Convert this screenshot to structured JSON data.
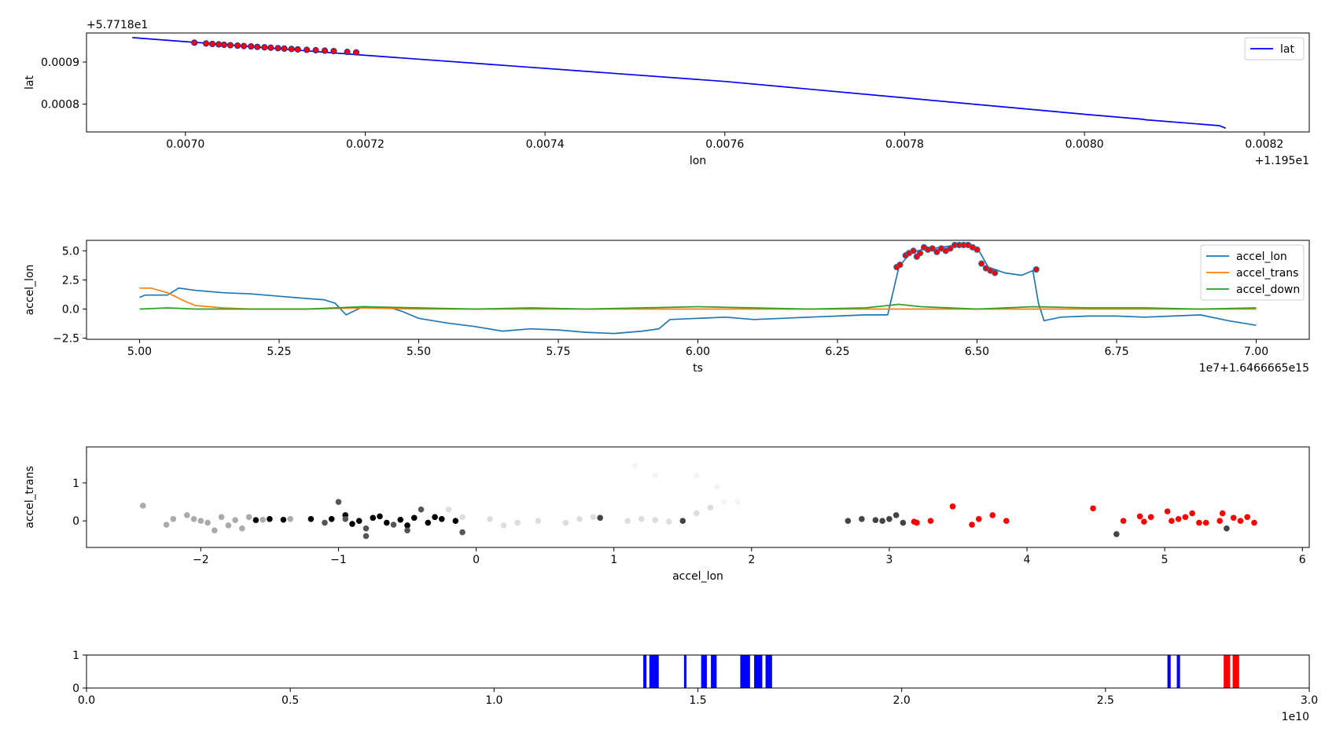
{
  "chart_data": [
    {
      "type": "line",
      "xlabel": "lon",
      "ylabel": "lat",
      "offset_x": "+1.195e1",
      "offset_y": "+5.7718e1",
      "xlim": [
        0.00689,
        0.00825
      ],
      "ylim": [
        0.000734,
        0.000969
      ],
      "xticks": [
        0.007,
        0.0072,
        0.0074,
        0.0076,
        0.0078,
        0.008,
        0.0082
      ],
      "xtick_labels": [
        "0.0070",
        "0.0072",
        "0.0074",
        "0.0076",
        "0.0078",
        "0.0080",
        "0.0082"
      ],
      "yticks": [
        0.0008,
        0.0009
      ],
      "ytick_labels": [
        "0.0008",
        "0.0009"
      ],
      "legend_position": "top-right",
      "series": [
        {
          "name": "lat",
          "color": "#0000ff",
          "x": [
            0.006941,
            0.0072,
            0.0076,
            0.008,
            0.008065,
            0.008068,
            0.00815,
            0.008157
          ],
          "y": [
            0.000958,
            0.000916,
            0.000854,
            0.000776,
            0.000764,
            0.000763,
            0.000749,
            0.000743
          ]
        },
        {
          "name": "",
          "kind": "scatter",
          "color": "#ff0000",
          "edge": "#2030a0",
          "x": [
            0.00701,
            0.007023,
            0.00703,
            0.007037,
            0.007043,
            0.00705,
            0.007058,
            0.007065,
            0.007073,
            0.00708,
            0.007088,
            0.007095,
            0.007103,
            0.00711,
            0.007118,
            0.007125,
            0.007135,
            0.007145,
            0.007155,
            0.007165,
            0.00718,
            0.00719
          ],
          "y": [
            0.000946,
            0.000944,
            0.000943,
            0.000942,
            0.000941,
            0.00094,
            0.000939,
            0.000938,
            0.000937,
            0.000936,
            0.000935,
            0.000934,
            0.000933,
            0.000932,
            0.000931,
            0.00093,
            0.000929,
            0.000928,
            0.000927,
            0.000926,
            0.000924,
            0.000923
          ]
        }
      ]
    },
    {
      "type": "line",
      "xlabel": "ts",
      "ylabel": "accel_lon",
      "offset_x": "1e7+1.6466665e15",
      "xlim": [
        4.905,
        7.095
      ],
      "ylim": [
        -2.6,
        5.9
      ],
      "xticks": [
        5.0,
        5.25,
        5.5,
        5.75,
        6.0,
        6.25,
        6.5,
        6.75,
        7.0
      ],
      "xtick_labels": [
        "5.00",
        "5.25",
        "5.50",
        "5.75",
        "6.00",
        "6.25",
        "6.50",
        "6.75",
        "7.00"
      ],
      "yticks": [
        -2.5,
        0.0,
        2.5,
        5.0
      ],
      "ytick_labels": [
        "−2.5",
        "0.0",
        "2.5",
        "5.0"
      ],
      "legend_position": "top-right",
      "series": [
        {
          "name": "accel_lon",
          "color": "#1f77b4",
          "x": [
            5.0,
            5.01,
            5.05,
            5.07,
            5.1,
            5.15,
            5.2,
            5.25,
            5.3,
            5.33,
            5.35,
            5.37,
            5.4,
            5.45,
            5.47,
            5.5,
            5.55,
            5.6,
            5.65,
            5.7,
            5.75,
            5.8,
            5.85,
            5.9,
            5.93,
            5.95,
            6.0,
            6.05,
            6.1,
            6.15,
            6.2,
            6.25,
            6.3,
            6.34,
            6.36,
            6.38,
            6.4,
            6.42,
            6.45,
            6.48,
            6.5,
            6.52,
            6.55,
            6.58,
            6.6,
            6.61,
            6.62,
            6.65,
            6.7,
            6.75,
            6.8,
            6.85,
            6.9,
            6.95,
            7.0
          ],
          "y": [
            1.0,
            1.2,
            1.2,
            1.8,
            1.6,
            1.4,
            1.3,
            1.1,
            0.9,
            0.8,
            0.5,
            -0.5,
            0.2,
            0.1,
            -0.2,
            -0.8,
            -1.2,
            -1.5,
            -1.9,
            -1.7,
            -1.8,
            -2.0,
            -2.1,
            -1.9,
            -1.7,
            -0.9,
            -0.8,
            -0.7,
            -0.9,
            -0.8,
            -0.7,
            -0.6,
            -0.5,
            -0.5,
            3.6,
            4.8,
            5.1,
            5.2,
            5.4,
            5.6,
            5.3,
            3.6,
            3.1,
            2.9,
            3.3,
            0.5,
            -1.0,
            -0.7,
            -0.6,
            -0.6,
            -0.7,
            -0.6,
            -0.5,
            -1.0,
            -1.4
          ]
        },
        {
          "name": "accel_trans",
          "color": "#ff7f0e",
          "x": [
            5.0,
            5.02,
            5.05,
            5.08,
            5.1,
            5.15,
            5.2,
            5.3,
            5.4,
            5.5,
            6.0,
            6.5,
            7.0
          ],
          "y": [
            1.8,
            1.8,
            1.4,
            0.7,
            0.3,
            0.1,
            0.0,
            0.0,
            0.1,
            0.0,
            0.0,
            0.0,
            0.0
          ]
        },
        {
          "name": "accel_down",
          "color": "#2ca02c",
          "x": [
            5.0,
            5.05,
            5.1,
            5.2,
            5.3,
            5.4,
            5.5,
            5.6,
            5.7,
            5.8,
            5.9,
            6.0,
            6.1,
            6.2,
            6.3,
            6.36,
            6.4,
            6.5,
            6.6,
            6.7,
            6.8,
            6.9,
            7.0
          ],
          "y": [
            0.0,
            0.1,
            0.0,
            0.0,
            0.0,
            0.2,
            0.1,
            0.0,
            0.1,
            0.0,
            0.1,
            0.2,
            0.1,
            0.0,
            0.1,
            0.4,
            0.2,
            0.0,
            0.2,
            0.1,
            0.1,
            0.0,
            0.1
          ]
        },
        {
          "name": "",
          "kind": "scatter",
          "color": "#ff0000",
          "edge": "#1f77b4",
          "x": [
            6.356,
            6.362,
            6.372,
            6.378,
            6.386,
            6.392,
            6.398,
            6.405,
            6.412,
            6.42,
            6.428,
            6.436,
            6.444,
            6.452,
            6.46,
            6.468,
            6.476,
            6.484,
            6.492,
            6.5,
            6.508,
            6.516,
            6.524,
            6.532,
            6.606
          ],
          "y": [
            3.6,
            3.8,
            4.6,
            4.8,
            5.0,
            4.5,
            4.8,
            5.3,
            5.1,
            5.2,
            4.9,
            5.2,
            5.0,
            5.2,
            5.5,
            5.5,
            5.5,
            5.5,
            5.3,
            5.1,
            3.9,
            3.5,
            3.3,
            3.1,
            3.4
          ]
        }
      ]
    },
    {
      "type": "scatter",
      "xlabel": "accel_lon",
      "ylabel": "accel_trans",
      "xlim": [
        -2.83,
        6.05
      ],
      "ylim": [
        -0.7,
        1.95
      ],
      "xticks": [
        -2,
        -1,
        0,
        1,
        2,
        3,
        4,
        5,
        6
      ],
      "xtick_labels": [
        "−2",
        "−1",
        "0",
        "1",
        "2",
        "3",
        "4",
        "5",
        "6"
      ],
      "yticks": [
        0,
        1
      ],
      "ytick_labels": [
        "0",
        "1"
      ],
      "groups": [
        {
          "color": "#aaaaaa",
          "points": [
            [
              -2.42,
              0.4
            ],
            [
              -2.2,
              0.05
            ],
            [
              -2.05,
              0.05
            ],
            [
              -1.95,
              -0.05
            ],
            [
              -1.85,
              0.1
            ],
            [
              -1.75,
              0.02
            ],
            [
              -1.7,
              -0.2
            ],
            [
              -1.65,
              0.1
            ],
            [
              -1.55,
              0.03
            ],
            [
              -1.35,
              0.05
            ],
            [
              -2.25,
              -0.1
            ],
            [
              -2.1,
              0.15
            ],
            [
              -1.9,
              -0.25
            ],
            [
              -2.0,
              0.0
            ],
            [
              -1.8,
              -0.12
            ]
          ]
        },
        {
          "color": "#000000",
          "points": [
            [
              -1.6,
              0.02
            ],
            [
              -1.5,
              0.05
            ],
            [
              -1.4,
              0.03
            ],
            [
              -1.2,
              0.05
            ],
            [
              -1.05,
              0.05
            ],
            [
              -0.95,
              0.15
            ],
            [
              -0.85,
              0.0
            ],
            [
              -0.75,
              0.08
            ],
            [
              -0.65,
              -0.05
            ],
            [
              -0.55,
              0.03
            ],
            [
              -0.45,
              0.08
            ],
            [
              -0.35,
              -0.05
            ],
            [
              -0.25,
              0.05
            ],
            [
              -0.15,
              0.0
            ],
            [
              -0.9,
              -0.08
            ],
            [
              -0.7,
              0.12
            ],
            [
              -0.5,
              -0.12
            ],
            [
              -0.3,
              0.1
            ]
          ]
        },
        {
          "color": "#555555",
          "points": [
            [
              -1.0,
              0.5
            ],
            [
              -0.95,
              0.05
            ],
            [
              -0.8,
              -0.2
            ],
            [
              -0.8,
              -0.4
            ],
            [
              -0.6,
              -0.1
            ],
            [
              -0.5,
              -0.25
            ],
            [
              -0.1,
              -0.3
            ],
            [
              -1.1,
              -0.05
            ],
            [
              -0.4,
              0.3
            ]
          ]
        },
        {
          "color": "#dddddd",
          "points": [
            [
              0.1,
              0.05
            ],
            [
              0.2,
              -0.12
            ],
            [
              0.3,
              -0.05
            ],
            [
              0.45,
              0.0
            ],
            [
              0.65,
              -0.05
            ],
            [
              0.75,
              0.05
            ],
            [
              0.85,
              0.1
            ],
            [
              1.1,
              0.0
            ],
            [
              1.2,
              0.05
            ],
            [
              1.3,
              0.02
            ],
            [
              1.4,
              -0.02
            ],
            [
              1.6,
              0.2
            ],
            [
              1.7,
              0.35
            ],
            [
              -0.2,
              0.3
            ],
            [
              -0.1,
              0.1
            ]
          ]
        },
        {
          "color": "#f4f4f4",
          "points": [
            [
              1.15,
              1.45
            ],
            [
              1.3,
              1.2
            ],
            [
              1.6,
              1.2
            ],
            [
              1.75,
              0.9
            ],
            [
              1.8,
              0.5
            ],
            [
              1.9,
              0.5
            ]
          ]
        },
        {
          "color": "#444444",
          "points": [
            [
              0.9,
              0.08
            ],
            [
              1.5,
              0.0
            ],
            [
              2.7,
              0.0
            ],
            [
              2.8,
              0.05
            ],
            [
              2.9,
              0.02
            ],
            [
              2.95,
              0.0
            ],
            [
              3.0,
              0.05
            ],
            [
              3.1,
              -0.05
            ],
            [
              3.05,
              0.15
            ],
            [
              4.65,
              -0.35
            ],
            [
              5.45,
              -0.2
            ]
          ]
        },
        {
          "color": "#ff0000",
          "points": [
            [
              3.18,
              -0.02
            ],
            [
              3.2,
              -0.05
            ],
            [
              3.3,
              0.0
            ],
            [
              3.46,
              0.38
            ],
            [
              3.6,
              -0.1
            ],
            [
              3.65,
              0.05
            ],
            [
              3.75,
              0.15
            ],
            [
              3.85,
              0.0
            ],
            [
              4.48,
              0.33
            ],
            [
              4.7,
              0.0
            ],
            [
              4.82,
              0.12
            ],
            [
              4.85,
              -0.02
            ],
            [
              4.9,
              0.1
            ],
            [
              5.02,
              0.25
            ],
            [
              5.05,
              0.0
            ],
            [
              5.1,
              0.05
            ],
            [
              5.15,
              0.1
            ],
            [
              5.2,
              0.2
            ],
            [
              5.25,
              -0.05
            ],
            [
              5.3,
              -0.05
            ],
            [
              5.4,
              0.0
            ],
            [
              5.42,
              0.2
            ],
            [
              5.5,
              0.08
            ],
            [
              5.55,
              0.0
            ],
            [
              5.6,
              0.1
            ],
            [
              5.65,
              -0.05
            ]
          ]
        }
      ]
    },
    {
      "type": "bar",
      "offset_x": "1e10",
      "xlim": [
        0.0,
        3.0
      ],
      "ylim": [
        0,
        1
      ],
      "xticks": [
        0.0,
        0.5,
        1.0,
        1.5,
        2.0,
        2.5,
        3.0
      ],
      "xtick_labels": [
        "0.0",
        "0.5",
        "1.0",
        "1.5",
        "2.0",
        "2.5",
        "3.0"
      ],
      "yticks": [
        0,
        1
      ],
      "ytick_labels": [
        "0",
        "1"
      ],
      "bars": [
        {
          "x0": 1.366,
          "x1": 1.374,
          "color": "#0000ff"
        },
        {
          "x0": 1.381,
          "x1": 1.404,
          "color": "#0000ff"
        },
        {
          "x0": 1.466,
          "x1": 1.472,
          "color": "#0000ff"
        },
        {
          "x0": 1.508,
          "x1": 1.522,
          "color": "#0000ff"
        },
        {
          "x0": 1.532,
          "x1": 1.546,
          "color": "#0000ff"
        },
        {
          "x0": 1.604,
          "x1": 1.628,
          "color": "#0000ff"
        },
        {
          "x0": 1.638,
          "x1": 1.658,
          "color": "#0000ff"
        },
        {
          "x0": 1.666,
          "x1": 1.682,
          "color": "#0000ff"
        },
        {
          "x0": 2.652,
          "x1": 2.66,
          "color": "#0000ff"
        },
        {
          "x0": 2.675,
          "x1": 2.683,
          "color": "#0000ff"
        },
        {
          "x0": 2.79,
          "x1": 2.806,
          "color": "#ff0000"
        },
        {
          "x0": 2.812,
          "x1": 2.828,
          "color": "#ff0000"
        }
      ]
    }
  ]
}
